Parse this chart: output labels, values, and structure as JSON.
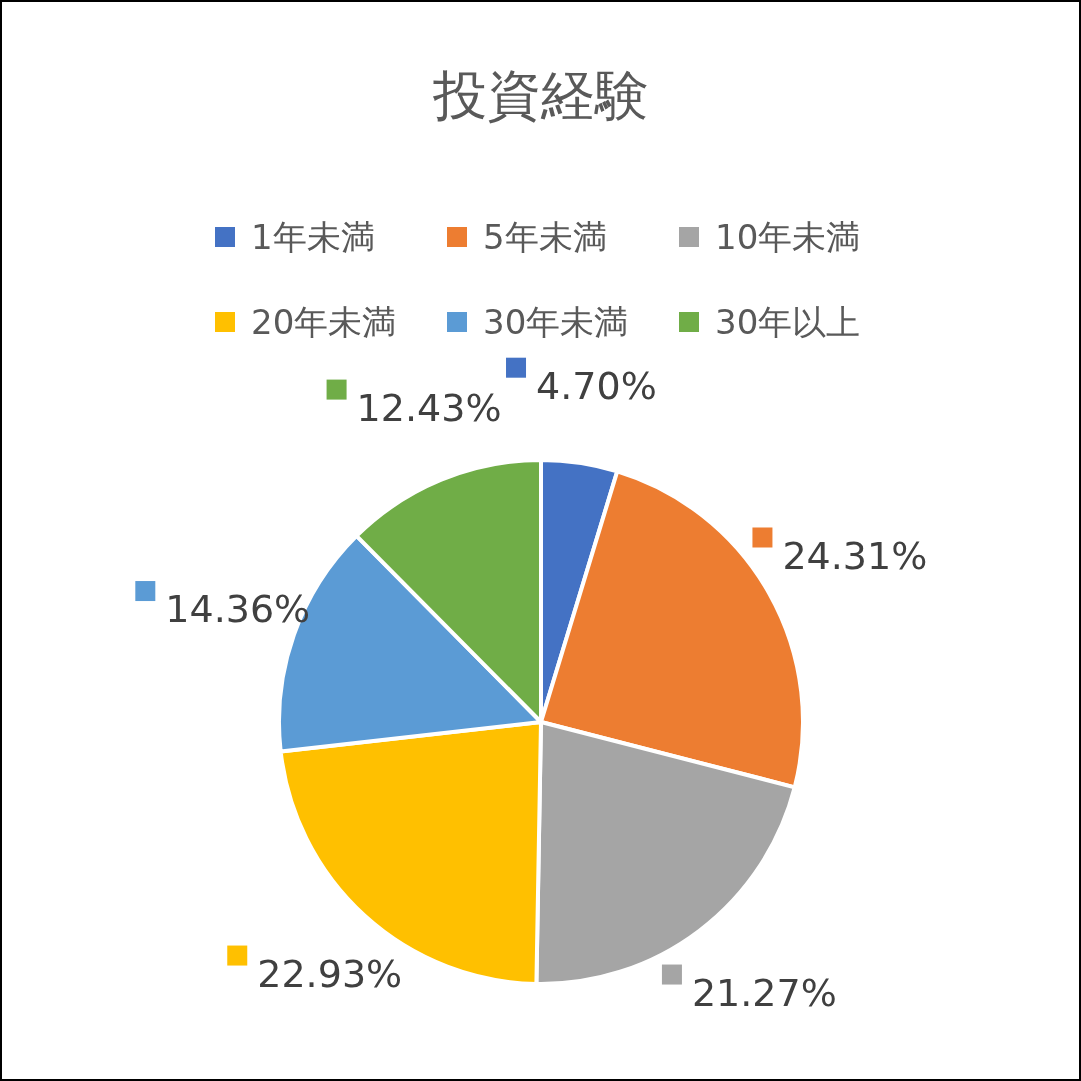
{
  "chart_data": {
    "type": "pie",
    "title": "投資経験",
    "categories": [
      "1年未満",
      "5年未満",
      "10年未満",
      "20年未満",
      "30年未満",
      "30年以上"
    ],
    "values": [
      4.7,
      24.31,
      21.27,
      22.93,
      14.36,
      12.43
    ],
    "colors": [
      "#4472c4",
      "#ed7d31",
      "#a5a5a5",
      "#ffc000",
      "#5b9bd5",
      "#70ad47"
    ],
    "value_labels": [
      "4.70%",
      "24.31%",
      "21.27%",
      "22.93%",
      "14.36%",
      "12.43%"
    ],
    "legend": "top"
  }
}
